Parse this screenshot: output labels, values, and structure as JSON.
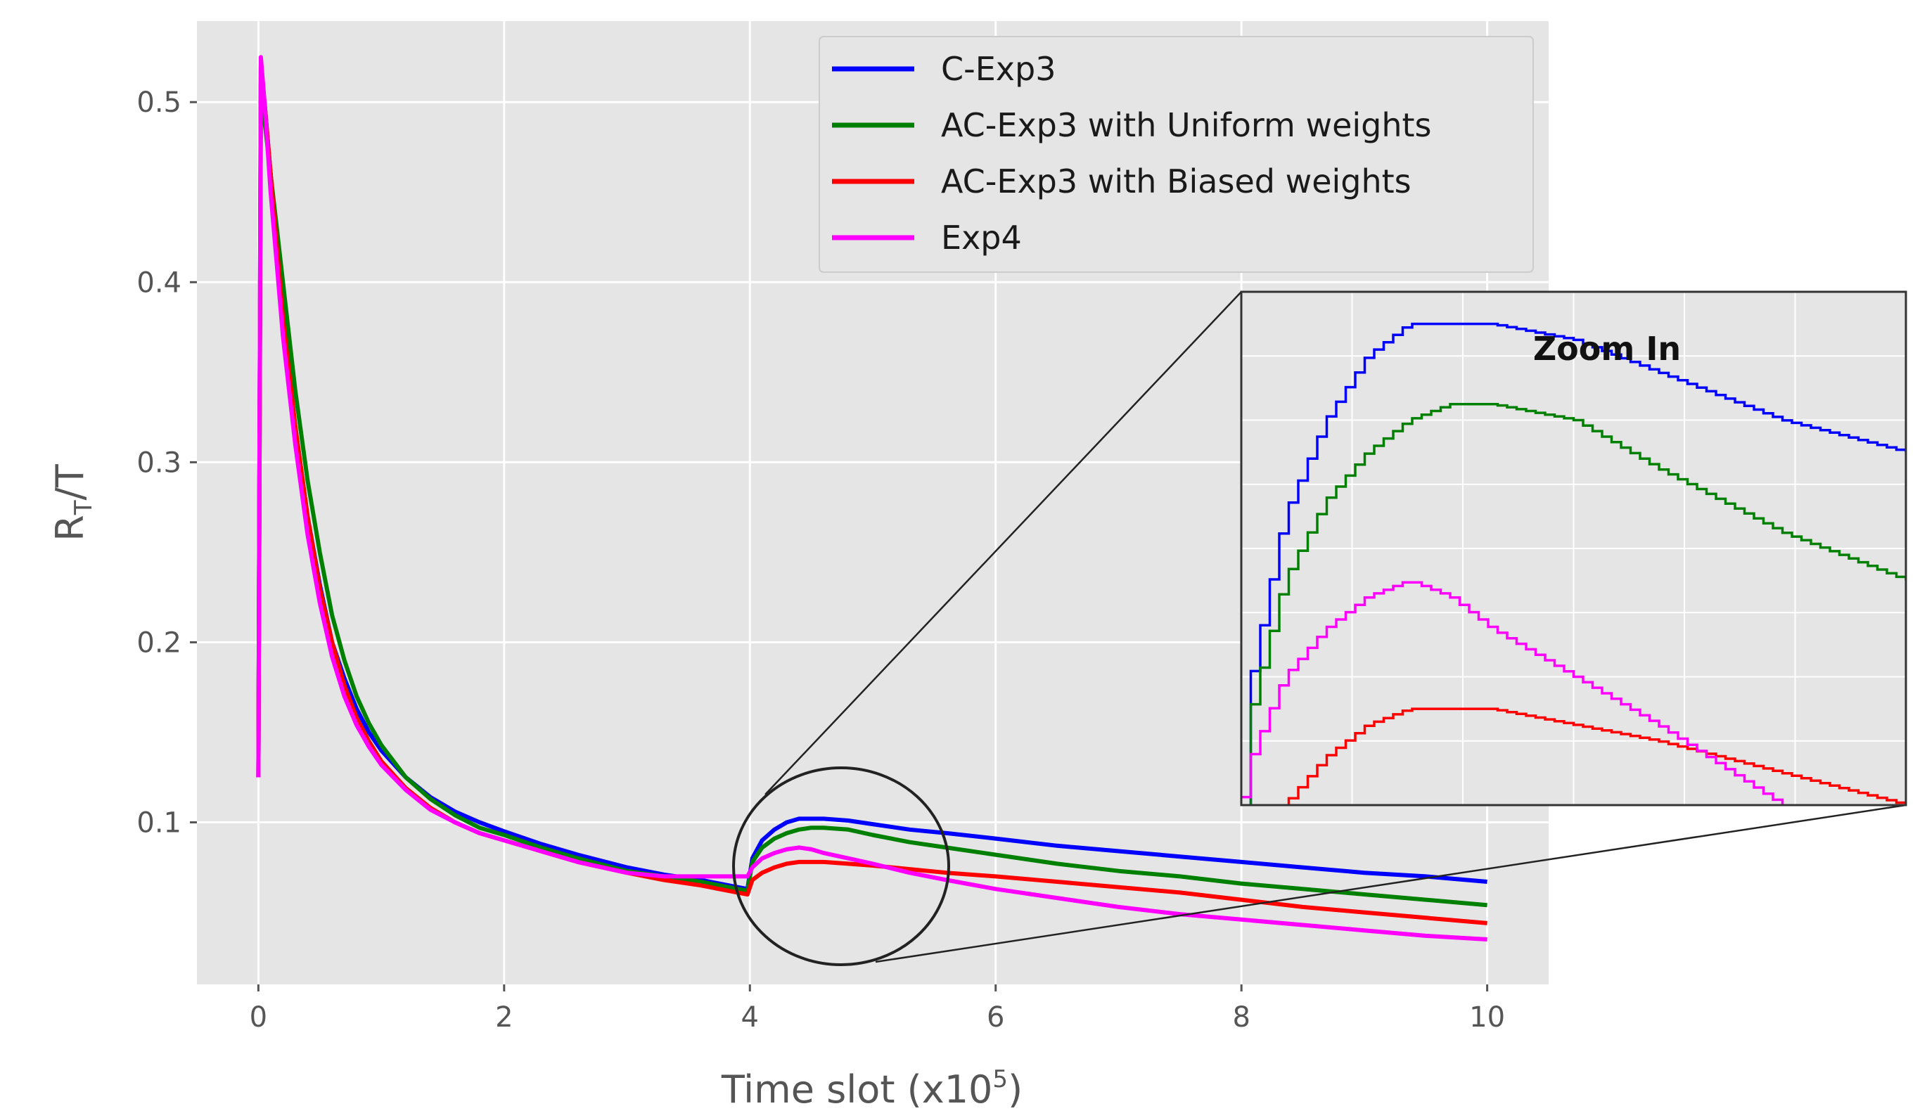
{
  "chart_data": {
    "type": "line",
    "xlabel": "Time slot (x10",
    "xlabel_exp": "5",
    "xlabel_close": ")",
    "ylabel_main": "R",
    "ylabel_sub": "T",
    "ylabel_rest": "/T",
    "xlim": [
      -0.5,
      10.5
    ],
    "ylim": [
      0.01,
      0.545
    ],
    "x_ticks": [
      0,
      2,
      4,
      6,
      8,
      10
    ],
    "y_ticks": [
      0.1,
      0.2,
      0.3,
      0.4,
      0.5
    ],
    "grid": true,
    "legend_position": "top-center",
    "inset_title": "Zoom In",
    "inset_xlim": [
      4.0,
      5.6
    ],
    "inset_ylim": [
      0.072,
      0.104
    ],
    "series": [
      {
        "name": "C-Exp3",
        "color": "#0000ff",
        "x": [
          0.0,
          0.02,
          0.05,
          0.1,
          0.15,
          0.2,
          0.3,
          0.4,
          0.5,
          0.6,
          0.7,
          0.8,
          0.9,
          1.0,
          1.2,
          1.4,
          1.6,
          1.8,
          2.0,
          2.3,
          2.6,
          3.0,
          3.3,
          3.6,
          3.9,
          3.98,
          4.02,
          4.1,
          4.2,
          4.3,
          4.4,
          4.5,
          4.6,
          4.8,
          5.0,
          5.3,
          5.6,
          6.0,
          6.5,
          7.0,
          7.5,
          8.0,
          8.5,
          9.0,
          9.5,
          10.0
        ],
        "y": [
          0.125,
          0.52,
          0.5,
          0.46,
          0.42,
          0.38,
          0.32,
          0.27,
          0.232,
          0.2,
          0.18,
          0.163,
          0.15,
          0.14,
          0.125,
          0.114,
          0.106,
          0.1,
          0.095,
          0.088,
          0.082,
          0.075,
          0.071,
          0.068,
          0.064,
          0.063,
          0.08,
          0.09,
          0.096,
          0.1,
          0.102,
          0.102,
          0.102,
          0.101,
          0.099,
          0.096,
          0.094,
          0.091,
          0.087,
          0.084,
          0.081,
          0.078,
          0.075,
          0.072,
          0.07,
          0.067
        ]
      },
      {
        "name": "AC-Exp3 with Uniform weights",
        "color": "#008000",
        "x": [
          0.0,
          0.02,
          0.05,
          0.1,
          0.15,
          0.2,
          0.3,
          0.4,
          0.5,
          0.6,
          0.7,
          0.8,
          0.9,
          1.0,
          1.2,
          1.4,
          1.6,
          1.8,
          2.0,
          2.3,
          2.6,
          3.0,
          3.3,
          3.6,
          3.9,
          3.98,
          4.02,
          4.1,
          4.2,
          4.3,
          4.4,
          4.5,
          4.6,
          4.8,
          5.0,
          5.3,
          5.6,
          6.0,
          6.5,
          7.0,
          7.5,
          8.0,
          8.5,
          9.0,
          9.5,
          10.0
        ],
        "y": [
          0.125,
          0.5,
          0.49,
          0.46,
          0.43,
          0.4,
          0.34,
          0.29,
          0.25,
          0.215,
          0.19,
          0.17,
          0.155,
          0.143,
          0.125,
          0.113,
          0.104,
          0.097,
          0.093,
          0.086,
          0.08,
          0.073,
          0.07,
          0.067,
          0.063,
          0.062,
          0.078,
          0.086,
          0.091,
          0.094,
          0.096,
          0.097,
          0.097,
          0.096,
          0.093,
          0.089,
          0.086,
          0.082,
          0.077,
          0.073,
          0.07,
          0.066,
          0.063,
          0.06,
          0.057,
          0.054
        ]
      },
      {
        "name": "AC-Exp3 with Biased weights",
        "color": "#ff0000",
        "x": [
          0.0,
          0.02,
          0.05,
          0.1,
          0.15,
          0.2,
          0.3,
          0.4,
          0.5,
          0.6,
          0.7,
          0.8,
          0.9,
          1.0,
          1.2,
          1.4,
          1.6,
          1.8,
          2.0,
          2.3,
          2.6,
          3.0,
          3.3,
          3.6,
          3.9,
          3.98,
          4.02,
          4.1,
          4.2,
          4.3,
          4.4,
          4.5,
          4.6,
          4.8,
          5.0,
          5.3,
          5.6,
          6.0,
          6.5,
          7.0,
          7.5,
          8.0,
          8.5,
          9.0,
          9.5,
          10.0
        ],
        "y": [
          0.125,
          0.51,
          0.5,
          0.46,
          0.42,
          0.38,
          0.32,
          0.27,
          0.23,
          0.2,
          0.176,
          0.158,
          0.145,
          0.134,
          0.119,
          0.108,
          0.1,
          0.094,
          0.09,
          0.084,
          0.078,
          0.072,
          0.068,
          0.065,
          0.061,
          0.06,
          0.068,
          0.072,
          0.075,
          0.077,
          0.078,
          0.078,
          0.078,
          0.077,
          0.076,
          0.074,
          0.072,
          0.07,
          0.067,
          0.064,
          0.061,
          0.057,
          0.053,
          0.05,
          0.047,
          0.044
        ]
      },
      {
        "name": "Exp4",
        "color": "#ff00ff",
        "x": [
          0.0,
          0.02,
          0.05,
          0.1,
          0.15,
          0.2,
          0.3,
          0.4,
          0.5,
          0.6,
          0.7,
          0.8,
          0.9,
          1.0,
          1.2,
          1.4,
          1.6,
          1.8,
          2.0,
          2.3,
          2.6,
          3.0,
          3.3,
          3.6,
          3.9,
          3.98,
          4.02,
          4.1,
          4.2,
          4.3,
          4.4,
          4.5,
          4.6,
          4.8,
          5.0,
          5.3,
          5.6,
          6.0,
          6.5,
          7.0,
          7.5,
          8.0,
          8.5,
          9.0,
          9.5,
          10.0
        ],
        "y": [
          0.125,
          0.525,
          0.5,
          0.45,
          0.41,
          0.37,
          0.31,
          0.26,
          0.222,
          0.192,
          0.17,
          0.154,
          0.142,
          0.132,
          0.118,
          0.107,
          0.1,
          0.094,
          0.09,
          0.084,
          0.078,
          0.072,
          0.07,
          0.07,
          0.07,
          0.07,
          0.075,
          0.08,
          0.083,
          0.085,
          0.086,
          0.085,
          0.083,
          0.08,
          0.077,
          0.072,
          0.068,
          0.063,
          0.058,
          0.053,
          0.049,
          0.046,
          0.043,
          0.04,
          0.037,
          0.035
        ]
      }
    ]
  }
}
